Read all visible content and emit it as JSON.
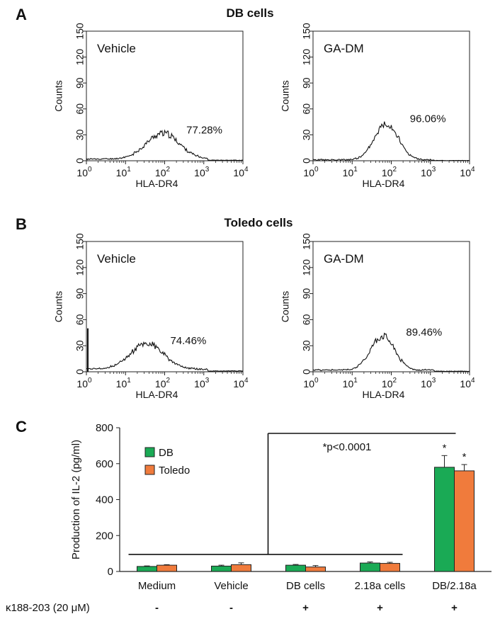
{
  "panels": {
    "a": {
      "letter": "A",
      "title": "DB cells"
    },
    "b": {
      "letter": "B",
      "title": "Toledo cells"
    },
    "c": {
      "letter": "C"
    }
  },
  "chart_data": [
    {
      "type": "line",
      "panel": "A",
      "title": "DB cells",
      "inset_label": "Vehicle",
      "percent_label": "77.28%",
      "xlabel": "HLA-DR4",
      "ylabel": "Counts",
      "xscale": "log",
      "xlim": [
        1,
        10000
      ],
      "xticks": [
        "10^0",
        "10^1",
        "10^2",
        "10^3",
        "10^4"
      ],
      "ylim": [
        0,
        150
      ],
      "yticks": [
        "0",
        "30",
        "60",
        "90",
        "120",
        "150"
      ],
      "peak_x": 90,
      "peak_y": 30,
      "spread": 0.42,
      "base": 2,
      "spike_y": 0,
      "seed": 11
    },
    {
      "type": "line",
      "panel": "A",
      "title": "DB cells",
      "inset_label": "GA-DM",
      "percent_label": "96.06%",
      "xlabel": "HLA-DR4",
      "ylabel": "Counts",
      "xscale": "log",
      "xlim": [
        1,
        10000
      ],
      "xticks": [
        "10^0",
        "10^1",
        "10^2",
        "10^3",
        "10^4"
      ],
      "ylim": [
        0,
        150
      ],
      "yticks": [
        "0",
        "30",
        "60",
        "90",
        "120",
        "150"
      ],
      "peak_x": 75,
      "peak_y": 43,
      "spread": 0.3,
      "base": 1,
      "spike_y": 0,
      "seed": 23
    },
    {
      "type": "line",
      "panel": "B",
      "title": "Toledo cells",
      "inset_label": "Vehicle",
      "percent_label": "74.46%",
      "xlabel": "HLA-DR4",
      "ylabel": "Counts",
      "xscale": "log",
      "xlim": [
        1,
        10000
      ],
      "xticks": [
        "10^0",
        "10^1",
        "10^2",
        "10^3",
        "10^4"
      ],
      "ylim": [
        0,
        150
      ],
      "yticks": [
        "0",
        "30",
        "60",
        "90",
        "120",
        "150"
      ],
      "peak_x": 35,
      "peak_y": 30,
      "spread": 0.42,
      "base": 3,
      "spike_y": 50,
      "seed": 37
    },
    {
      "type": "line",
      "panel": "B",
      "title": "Toledo cells",
      "inset_label": "GA-DM",
      "percent_label": "89.46%",
      "xlabel": "HLA-DR4",
      "ylabel": "Counts",
      "xscale": "log",
      "xlim": [
        1,
        10000
      ],
      "xticks": [
        "10^0",
        "10^1",
        "10^2",
        "10^3",
        "10^4"
      ],
      "ylim": [
        0,
        150
      ],
      "yticks": [
        "0",
        "30",
        "60",
        "90",
        "120",
        "150"
      ],
      "peak_x": 60,
      "peak_y": 40,
      "spread": 0.3,
      "base": 2,
      "spike_y": 0,
      "seed": 51
    },
    {
      "type": "bar",
      "panel": "C",
      "ylabel": "Production of IL-2 (pg/ml)",
      "ylim": [
        0,
        800
      ],
      "yticks": [
        0,
        200,
        400,
        600,
        800
      ],
      "categories": [
        "Medium",
        "Vehicle",
        "DB cells",
        "2.18a cells",
        "DB/2.18a"
      ],
      "series": [
        {
          "name": "DB",
          "color": "#1aaa55",
          "values": [
            28,
            30,
            35,
            47,
            580
          ],
          "errors": [
            3,
            5,
            4,
            6,
            65
          ]
        },
        {
          "name": "Toledo",
          "color": "#f07b3c",
          "values": [
            35,
            38,
            25,
            45,
            560
          ],
          "errors": [
            3,
            10,
            8,
            6,
            35
          ]
        }
      ],
      "significance": [
        "",
        "",
        "",
        "",
        "*"
      ],
      "significance_text": "*p<0.0001",
      "bracket_y": 95,
      "treatment_label": "κ188-203 (20 μM)",
      "treatment": [
        "-",
        "-",
        "+",
        "+",
        "+"
      ],
      "legend_position": "top-left"
    }
  ]
}
